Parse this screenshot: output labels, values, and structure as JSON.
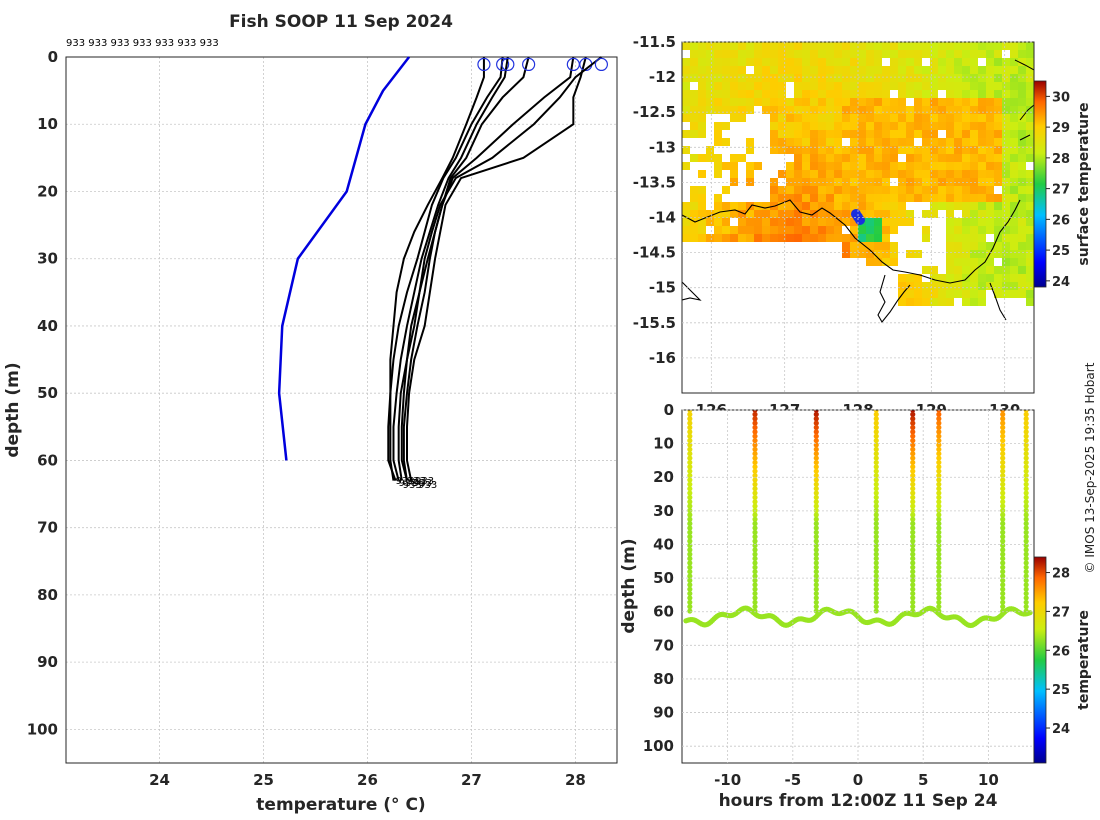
{
  "title": "Fish SOOP 11 Sep 2024",
  "station_labels": "933 933 933 933 933 933 933",
  "credit": "© IMOS 13-Sep-2025 19:35 Hobart",
  "colors": {
    "profile": "#000000",
    "climatology": "#0000dd",
    "marker": "#2233dd"
  },
  "chart_data": [
    {
      "id": "profiles",
      "type": "line",
      "xlabel": "temperature (° C)",
      "ylabel": "depth (m)",
      "xlim": [
        23.1,
        28.4
      ],
      "ylim": [
        105,
        0
      ],
      "xticks": [
        24,
        25,
        26,
        27,
        28
      ],
      "yticks": [
        0,
        10,
        20,
        30,
        40,
        50,
        60,
        70,
        80,
        90,
        100
      ],
      "grid": true,
      "climatology": {
        "name": "climatology",
        "depth": [
          0,
          5,
          10,
          20,
          30,
          40,
          50,
          60
        ],
        "temp": [
          26.4,
          26.15,
          25.98,
          25.8,
          25.33,
          25.18,
          25.15,
          25.22
        ]
      },
      "depth_levels": [
        0,
        3,
        6,
        10,
        15,
        18,
        22,
        26,
        30,
        35,
        40,
        45,
        50,
        55,
        60,
        63
      ],
      "profiles": [
        {
          "surface": 27.12,
          "temp": [
            27.12,
            27.12,
            27.05,
            26.95,
            26.82,
            26.72,
            26.58,
            26.45,
            26.35,
            26.28,
            26.25,
            26.22,
            26.22,
            26.22,
            26.22,
            26.25
          ]
        },
        {
          "surface": 27.3,
          "temp": [
            27.3,
            27.28,
            27.15,
            27.0,
            26.85,
            26.73,
            26.62,
            26.55,
            26.48,
            26.38,
            26.3,
            26.25,
            26.22,
            26.2,
            26.2,
            26.27
          ]
        },
        {
          "surface": 27.35,
          "temp": [
            27.35,
            27.32,
            27.2,
            27.05,
            26.9,
            26.78,
            26.68,
            26.6,
            26.52,
            26.45,
            26.38,
            26.32,
            26.28,
            26.25,
            26.25,
            26.3
          ]
        },
        {
          "surface": 27.55,
          "temp": [
            27.55,
            27.5,
            27.3,
            27.1,
            26.95,
            26.8,
            26.72,
            26.65,
            26.58,
            26.5,
            26.45,
            26.38,
            26.32,
            26.3,
            26.3,
            26.33
          ]
        },
        {
          "surface": 27.98,
          "temp": [
            27.98,
            27.95,
            27.7,
            27.4,
            27.05,
            26.82,
            26.72,
            26.65,
            26.6,
            26.55,
            26.48,
            26.42,
            26.38,
            26.35,
            26.35,
            26.38
          ]
        },
        {
          "surface": 28.1,
          "temp": [
            28.1,
            28.05,
            27.98,
            27.98,
            27.5,
            26.9,
            26.75,
            26.7,
            26.65,
            26.6,
            26.55,
            26.45,
            26.4,
            26.38,
            26.38,
            26.42
          ]
        },
        {
          "surface": 28.25,
          "temp": [
            28.25,
            28.0,
            27.85,
            27.6,
            27.2,
            26.85,
            26.7,
            26.62,
            26.55,
            26.5,
            26.42,
            26.38,
            26.35,
            26.33,
            26.33,
            26.38
          ]
        }
      ],
      "bottom_labels": "933"
    },
    {
      "id": "sst-map",
      "type": "heatmap",
      "ylabel": "",
      "yticks": [
        -11.5,
        -12,
        -12.5,
        -13,
        -13.5,
        -14,
        -14.5,
        -15,
        -15.5,
        -16
      ],
      "xticks": [
        126,
        127,
        128,
        129,
        130
      ],
      "xlim": [
        125.6,
        130.4
      ],
      "ylim": [
        -16.5,
        -11.5
      ],
      "colorbar": {
        "label": "surface temperature",
        "ticks": [
          24,
          25,
          26,
          27,
          28,
          29,
          30
        ],
        "range": [
          23.8,
          30.5
        ]
      }
    },
    {
      "id": "section",
      "type": "scatter",
      "xlabel": "hours from 12:00Z 11 Sep 24",
      "ylabel": "depth (m)",
      "xlim": [
        -13.5,
        13.5
      ],
      "ylim": [
        105,
        0
      ],
      "xticks": [
        -10,
        -5,
        0,
        5,
        10
      ],
      "yticks": [
        0,
        10,
        20,
        30,
        40,
        50,
        60,
        70,
        80,
        90,
        100
      ],
      "cast_times": [
        -12.9,
        -7.9,
        -3.2,
        1.4,
        4.2,
        6.2,
        11.1,
        12.9
      ],
      "colorbar": {
        "label": "temperature",
        "ticks": [
          24,
          25,
          26,
          27,
          28
        ],
        "range": [
          23.1,
          28.4
        ]
      }
    }
  ]
}
